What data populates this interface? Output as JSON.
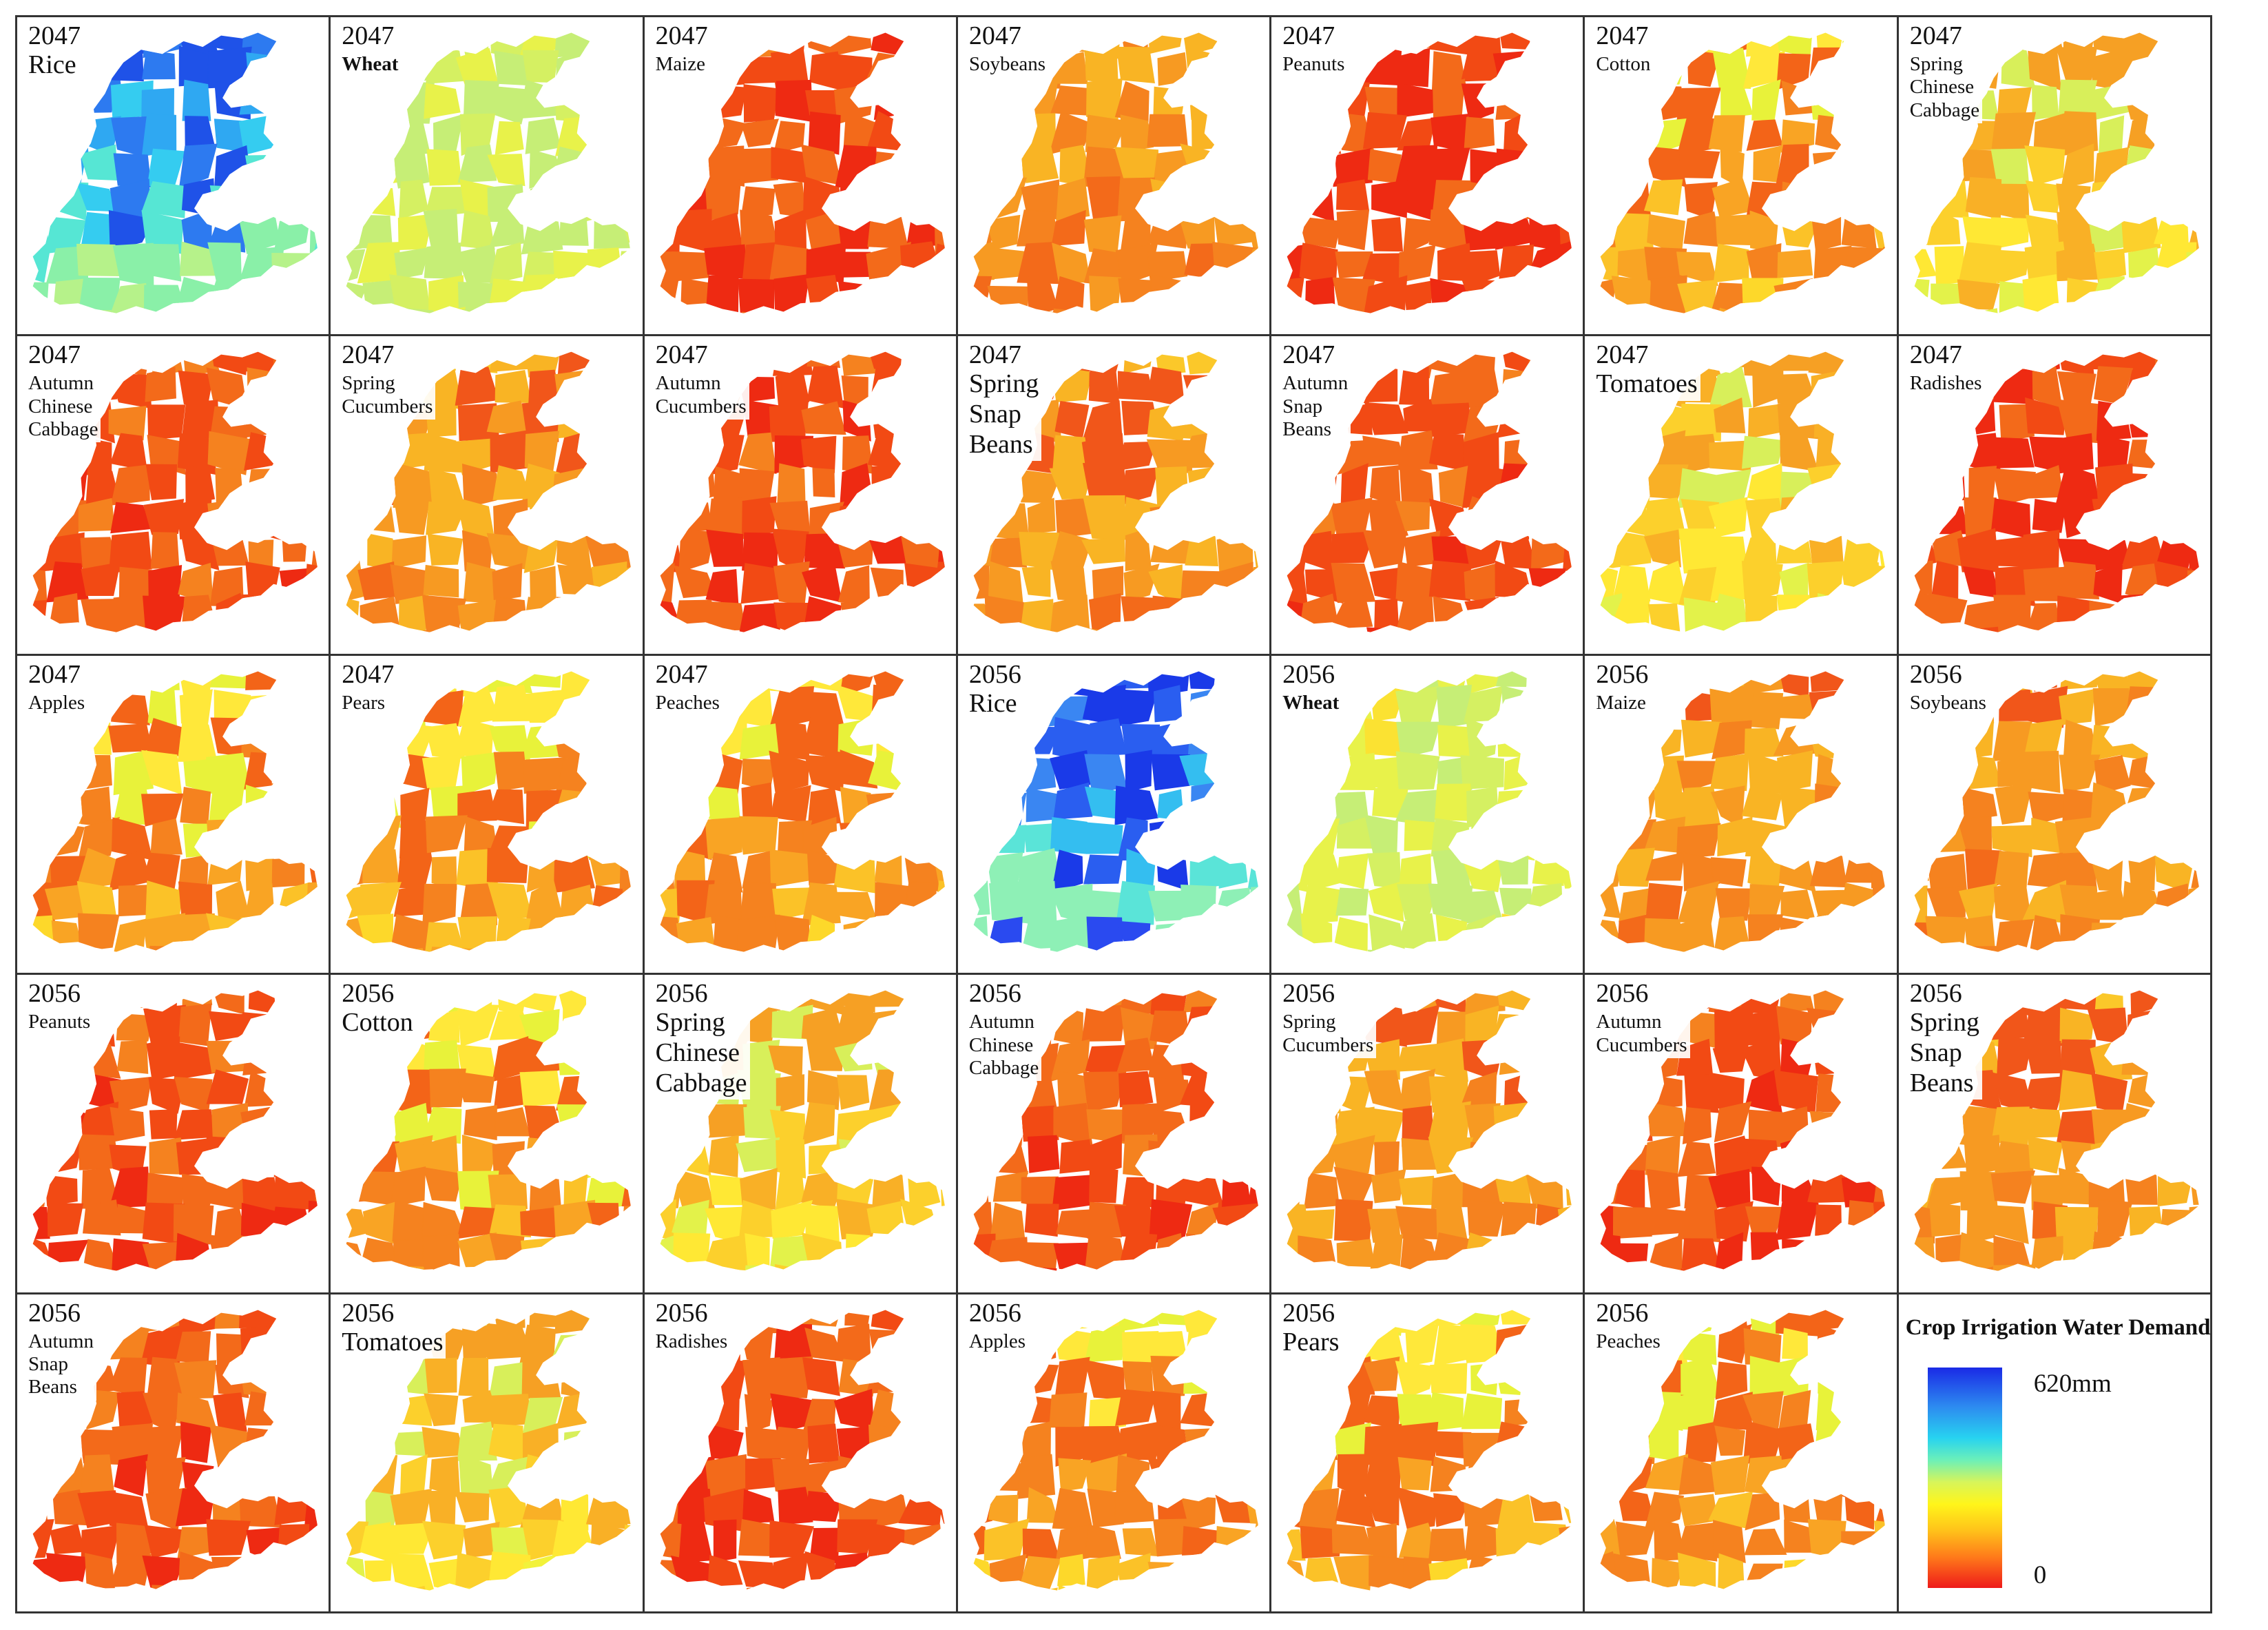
{
  "panels": [
    {
      "year": "2047",
      "crop": "Rice",
      "style": "large",
      "palette": "rice",
      "shade": 0
    },
    {
      "year": "2047",
      "crop": "Wheat",
      "style": "bold",
      "palette": "wheat",
      "shade": 0
    },
    {
      "year": "2047",
      "crop": "Maize",
      "style": "",
      "palette": "hot",
      "shade": 0.1
    },
    {
      "year": "2047",
      "crop": "Soybeans",
      "style": "",
      "palette": "warm",
      "shade": 0.25
    },
    {
      "year": "2047",
      "crop": "Peanuts",
      "style": "",
      "palette": "hot",
      "shade": 0.05
    },
    {
      "year": "2047",
      "crop": "Cotton",
      "style": "",
      "palette": "mid",
      "shade": 0.5
    },
    {
      "year": "2047",
      "crop": "Spring\nChinese\nCabbage",
      "style": "",
      "palette": "pale",
      "shade": 0.7
    },
    {
      "year": "2047",
      "crop": "Autumn\nChinese\nCabbage",
      "style": "",
      "palette": "hot",
      "shade": 0.2
    },
    {
      "year": "2047",
      "crop": "Spring\nCucumbers",
      "style": "",
      "palette": "warm",
      "shade": 0.45
    },
    {
      "year": "2047",
      "crop": "Autumn\nCucumbers",
      "style": "",
      "palette": "hot",
      "shade": 0.1
    },
    {
      "year": "2047",
      "crop": "Spring\nSnap\nBeans",
      "style": "large",
      "palette": "warm",
      "shade": 0.5
    },
    {
      "year": "2047",
      "crop": "Autumn\nSnap\nBeans",
      "style": "",
      "palette": "hot",
      "shade": 0.15
    },
    {
      "year": "2047",
      "crop": "Tomatoes",
      "style": "large",
      "palette": "pale",
      "shade": 0.6
    },
    {
      "year": "2047",
      "crop": "Radishes",
      "style": "",
      "palette": "hot",
      "shade": 0.05
    },
    {
      "year": "2047",
      "crop": "Apples",
      "style": "",
      "palette": "mid",
      "shade": 0.6
    },
    {
      "year": "2047",
      "crop": "Pears",
      "style": "",
      "palette": "mid",
      "shade": 0.6
    },
    {
      "year": "2047",
      "crop": "Peaches",
      "style": "",
      "palette": "mid",
      "shade": 0.55
    },
    {
      "year": "2056",
      "crop": "Rice",
      "style": "large",
      "palette": "rice2",
      "shade": 0
    },
    {
      "year": "2056",
      "crop": "Wheat",
      "style": "bold",
      "palette": "wheat",
      "shade": 0
    },
    {
      "year": "2056",
      "crop": "Maize",
      "style": "",
      "palette": "warm",
      "shade": 0.3
    },
    {
      "year": "2056",
      "crop": "Soybeans",
      "style": "",
      "palette": "warm",
      "shade": 0.3
    },
    {
      "year": "2056",
      "crop": "Peanuts",
      "style": "",
      "palette": "hot",
      "shade": 0.15
    },
    {
      "year": "2056",
      "crop": "Cotton",
      "style": "large",
      "palette": "mid",
      "shade": 0.65
    },
    {
      "year": "2056",
      "crop": "Spring\nChinese\nCabbage",
      "style": "large",
      "palette": "pale",
      "shade": 0.75
    },
    {
      "year": "2056",
      "crop": "Autumn\nChinese\nCabbage",
      "style": "",
      "palette": "hot",
      "shade": 0.2
    },
    {
      "year": "2056",
      "crop": "Spring\nCucumbers",
      "style": "",
      "palette": "warm",
      "shade": 0.4
    },
    {
      "year": "2056",
      "crop": "Autumn\nCucumbers",
      "style": "",
      "palette": "hot",
      "shade": 0.15
    },
    {
      "year": "2056",
      "crop": "Spring\nSnap\nBeans",
      "style": "large",
      "palette": "warm",
      "shade": 0.45
    },
    {
      "year": "2056",
      "crop": "Autumn\nSnap\nBeans",
      "style": "",
      "palette": "hot",
      "shade": 0.2
    },
    {
      "year": "2056",
      "crop": "Tomatoes",
      "style": "large",
      "palette": "pale",
      "shade": 0.65
    },
    {
      "year": "2056",
      "crop": "Radishes",
      "style": "",
      "palette": "hot",
      "shade": 0.1
    },
    {
      "year": "2056",
      "crop": "Apples",
      "style": "",
      "palette": "mid",
      "shade": 0.55
    },
    {
      "year": "2056",
      "crop": "Pears",
      "style": "large",
      "palette": "mid",
      "shade": 0.6
    },
    {
      "year": "2056",
      "crop": "Peaches",
      "style": "",
      "palette": "mid",
      "shade": 0.55
    }
  ],
  "legend": {
    "title": "Crop Irrigation Water Demand",
    "max_label": "620mm",
    "min_label": "0",
    "max_value_mm": 620,
    "min_value_mm": 0,
    "colors_top_to_bottom": [
      "#1a2ae6",
      "#2d8cf0",
      "#27d3f0",
      "#6cf0b8",
      "#d7f55a",
      "#fff51a",
      "#ffc21a",
      "#ff7a1a",
      "#ee1a1a"
    ]
  }
}
